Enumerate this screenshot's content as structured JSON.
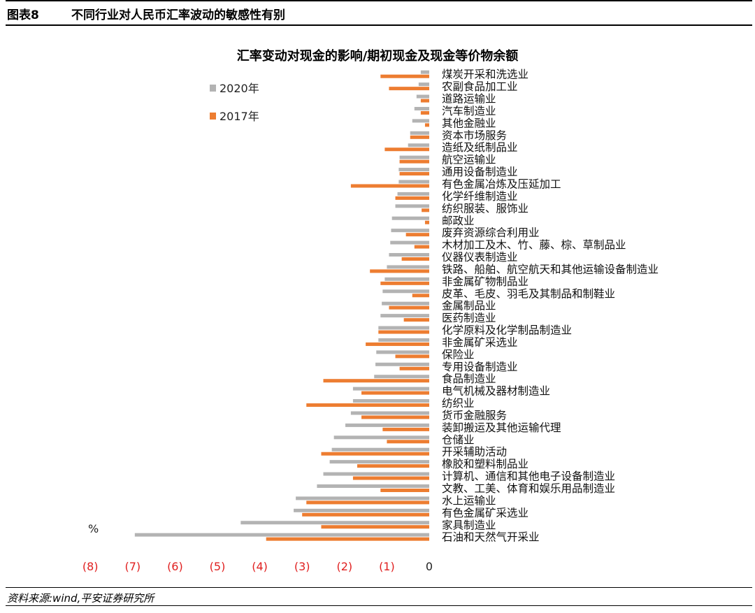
{
  "header": {
    "figure_label": "图表8",
    "figure_title": "不同行业对人民币汇率波动的敏感性有别"
  },
  "chart_data": {
    "type": "bar",
    "orientation": "horizontal",
    "title": "汇率变动对现金的影响/期初现金及现金等价物余额",
    "unit": "%",
    "xlim": [
      -8,
      0
    ],
    "x_ticks": [
      "(8)",
      "(7)",
      "(6)",
      "(5)",
      "(4)",
      "(3)",
      "(2)",
      "(1)",
      "0"
    ],
    "legend_position": "top-left",
    "grid": false,
    "categories": [
      "煤炭开采和洗选业",
      "农副食品加工业",
      "道路运输业",
      "汽车制造业",
      "其他金融业",
      "资本市场服务",
      "造纸及纸制品业",
      "航空运输业",
      "通用设备制造业",
      "有色金属冶炼及压延加工",
      "化学纤维制造业",
      "纺织服装、服饰业",
      "邮政业",
      "废弃资源综合利用业",
      "木材加工及木、竹、藤、棕、草制品业",
      "仪器仪表制造业",
      "铁路、船舶、航空航天和其他运输设备制造业",
      "非金属矿物制品业",
      "皮革、毛皮、羽毛及其制品和制鞋业",
      "金属制品业",
      "医药制造业",
      "化学原料及化学制品制造业",
      "非金属矿采选业",
      "保险业",
      "专用设备制造业",
      "食品制造业",
      "电气机械及器材制造业",
      "纺织业",
      "货币金融服务",
      "装卸搬运及其他运输代理",
      "仓储业",
      "开采辅助活动",
      "橡胶和塑料制品业",
      "计算机、通信和其他电子设备制造业",
      "文教、工美、体育和娱乐用品制造业",
      "水上运输业",
      "有色金属矿采选业",
      "家具制造业",
      "石油和天然气开采业"
    ],
    "series": [
      {
        "name": "2020年",
        "color": "#b3b3b3",
        "values": [
          -0.2,
          -0.25,
          -0.3,
          -0.35,
          -0.4,
          -0.45,
          -0.5,
          -0.7,
          -0.72,
          -0.72,
          -0.75,
          -0.8,
          -0.88,
          -0.9,
          -0.92,
          -0.95,
          -1.0,
          -1.05,
          -1.1,
          -1.12,
          -1.15,
          -1.2,
          -1.2,
          -1.25,
          -1.27,
          -1.3,
          -1.8,
          -1.8,
          -1.85,
          -1.98,
          -2.25,
          -2.3,
          -2.35,
          -2.5,
          -2.65,
          -3.15,
          -3.2,
          -4.45,
          -6.95
        ]
      },
      {
        "name": "2017年",
        "color": "#ed7d31",
        "values": [
          -1.15,
          -0.95,
          -0.2,
          -0.2,
          -0.1,
          -0.45,
          -1.05,
          -0.7,
          -0.7,
          -1.85,
          -0.8,
          -0.18,
          -0.1,
          -0.55,
          -0.35,
          -0.65,
          -1.4,
          -1.15,
          -0.4,
          -0.95,
          -0.6,
          -1.2,
          -1.5,
          -0.8,
          -0.7,
          -2.5,
          -1.6,
          -2.9,
          -1.6,
          -1.1,
          -1.0,
          -2.55,
          -1.7,
          -1.8,
          -1.15,
          -2.9,
          -3.0,
          -2.55,
          -3.85
        ]
      }
    ]
  },
  "source": "资料来源:wind,平安证券研究所"
}
